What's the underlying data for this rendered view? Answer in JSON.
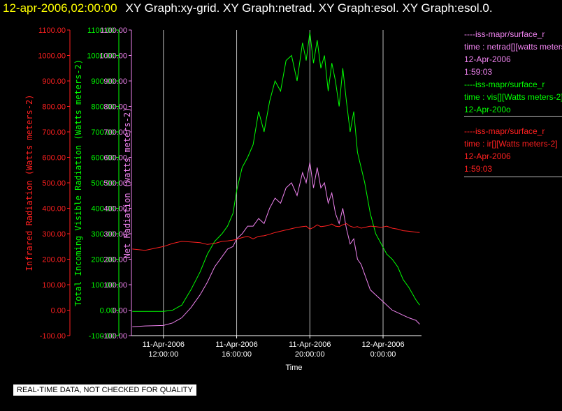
{
  "header": {
    "timestamp": "12-apr-2006,02:00:00",
    "graphs": "XY Graph:xy-grid.  XY Graph:netrad.  XY Graph:esol.  XY Graph:esol.0."
  },
  "banner": "REAL-TIME DATA, NOT CHECKED FOR QUALITY",
  "colors": {
    "red": "#ff2020",
    "green": "#00ff00",
    "violet": "#ee82ee",
    "grid": "#bbbbbb"
  },
  "chart_data": {
    "type": "line",
    "xlabel": "Time",
    "x_ticks": [
      {
        "date": "11-Apr-2006",
        "time": "12:00:00"
      },
      {
        "date": "11-Apr-2006",
        "time": "16:00:00"
      },
      {
        "date": "11-Apr-2006",
        "time": "20:00:00"
      },
      {
        "date": "12-Apr-2006",
        "time": "0:00:00"
      }
    ],
    "x_tick_hours": [
      12,
      16,
      20,
      24
    ],
    "xlim_hours": [
      10.25,
      26.1
    ],
    "grid": "vertical",
    "axes": [
      {
        "id": "infrared",
        "color": "#ff2020",
        "ylabel": "Infrared Radiation (Watts meters-2)",
        "ylim": [
          -100,
          1100
        ],
        "ticks": [
          "1100.00",
          "1000.00",
          "900.00",
          "800.00",
          "700.00",
          "600.00",
          "500.00",
          "400.00",
          "300.00",
          "200.00",
          "100.00",
          "0.00",
          "-100.00"
        ]
      },
      {
        "id": "visible",
        "color": "#00ff00",
        "ylabel": "Total Incoming Visible Radiation (Watts meters-2)",
        "ylim": [
          -100,
          1100
        ],
        "ticks": [
          "1100.00",
          "1000.00",
          "900.00",
          "800.00",
          "700.00",
          "600.00",
          "500.00",
          "400.00",
          "300.00",
          "200.00",
          "100.00",
          "0.00",
          "-100.00"
        ]
      },
      {
        "id": "net",
        "color": "#ee82ee",
        "ylabel": "Net Radiation (watts meters-2)",
        "ylim": [
          -100,
          1100
        ],
        "ticks": [
          "1100.00",
          "1000.00",
          "900.00",
          "800.00",
          "700.00",
          "600.00",
          "500.00",
          "400.00",
          "300.00",
          "200.00",
          "100.00",
          "0.00",
          "-100.00"
        ]
      }
    ],
    "series": [
      {
        "axis": "visible",
        "color": "#00ff00",
        "legend": [
          "----iss-mapr/surface_r",
          "time : vis[][Watts meters-2]",
          "12-Apr-200o"
        ],
        "x": [
          10.3,
          11,
          12,
          12.5,
          13,
          13.5,
          14,
          14.4,
          14.8,
          15.2,
          15.5,
          15.8,
          16,
          16.3,
          16.6,
          16.9,
          17.2,
          17.5,
          17.8,
          18.1,
          18.4,
          18.7,
          19,
          19.3,
          19.6,
          19.8,
          20,
          20.2,
          20.4,
          20.6,
          20.8,
          21,
          21.2,
          21.4,
          21.6,
          21.8,
          22,
          22.2,
          22.4,
          22.6,
          22.8,
          23,
          23.3,
          23.6,
          23.9,
          24.2,
          24.5,
          24.8,
          25.1,
          25.4,
          25.8,
          26.0
        ],
        "y": [
          -5,
          -5,
          -5,
          0,
          20,
          80,
          150,
          220,
          270,
          300,
          330,
          380,
          470,
          560,
          600,
          650,
          780,
          700,
          820,
          900,
          860,
          980,
          1000,
          900,
          1050,
          980,
          1090,
          970,
          1060,
          950,
          1000,
          860,
          970,
          900,
          800,
          950,
          820,
          700,
          780,
          620,
          560,
          500,
          380,
          300,
          260,
          220,
          200,
          170,
          120,
          90,
          40,
          20
        ]
      },
      {
        "axis": "net",
        "color": "#ee82ee",
        "legend": [
          "----iss-mapr/surface_r",
          "time : netrad[][watts meters-2]",
          "12-Apr-2006",
          "1:59:03"
        ],
        "x": [
          10.3,
          11,
          12,
          12.5,
          13,
          13.5,
          14,
          14.4,
          14.8,
          15.2,
          15.5,
          15.8,
          16,
          16.3,
          16.6,
          16.9,
          17.2,
          17.5,
          17.8,
          18.1,
          18.4,
          18.7,
          19,
          19.3,
          19.6,
          19.8,
          20,
          20.2,
          20.4,
          20.6,
          20.8,
          21,
          21.2,
          21.4,
          21.6,
          21.8,
          22,
          22.2,
          22.4,
          22.6,
          22.8,
          23,
          23.3,
          23.6,
          23.9,
          24.2,
          24.5,
          24.8,
          25.1,
          25.4,
          25.8,
          26.0
        ],
        "y": [
          -65,
          -62,
          -60,
          -50,
          -30,
          10,
          60,
          110,
          170,
          210,
          240,
          250,
          280,
          300,
          330,
          330,
          360,
          340,
          400,
          440,
          420,
          480,
          500,
          450,
          540,
          500,
          580,
          480,
          560,
          480,
          500,
          420,
          460,
          380,
          340,
          400,
          320,
          260,
          280,
          200,
          180,
          140,
          80,
          60,
          40,
          20,
          0,
          -10,
          -20,
          -30,
          -40,
          -55
        ]
      },
      {
        "axis": "infrared",
        "color": "#ff2020",
        "legend": [
          "----iss-mapr/surface_r",
          "time : ir[][Watts meters-2]",
          "12-Apr-2006",
          "1:59:03"
        ],
        "x": [
          10.3,
          11,
          12,
          12.5,
          13,
          13.5,
          14,
          14.4,
          14.8,
          15.2,
          15.5,
          15.8,
          16,
          16.3,
          16.6,
          16.9,
          17.2,
          17.5,
          17.8,
          18.1,
          18.4,
          18.7,
          19,
          19.3,
          19.6,
          19.8,
          20,
          20.2,
          20.4,
          20.6,
          20.8,
          21,
          21.2,
          21.4,
          21.6,
          21.8,
          22,
          22.2,
          22.4,
          22.6,
          22.8,
          23,
          23.3,
          23.6,
          23.9,
          24.2,
          24.5,
          24.8,
          25.1,
          25.4,
          25.8,
          26.0
        ],
        "y": [
          240,
          235,
          250,
          262,
          270,
          268,
          265,
          258,
          262,
          270,
          272,
          275,
          278,
          285,
          290,
          280,
          290,
          292,
          298,
          305,
          310,
          315,
          320,
          325,
          328,
          330,
          318,
          325,
          335,
          328,
          330,
          332,
          338,
          330,
          328,
          335,
          340,
          330,
          325,
          328,
          322,
          325,
          330,
          328,
          325,
          330,
          322,
          318,
          312,
          310,
          306,
          305
        ]
      }
    ]
  }
}
